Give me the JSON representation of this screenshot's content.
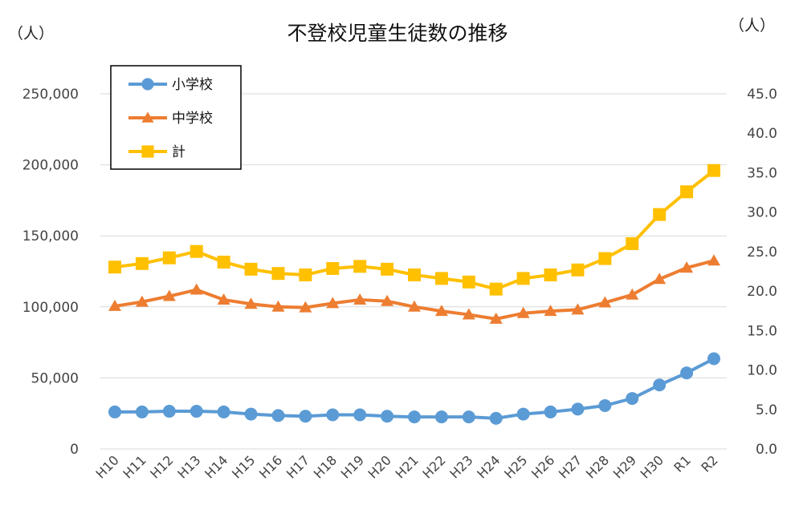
{
  "chart_data": {
    "type": "line",
    "title": "不登校児童生徒数の推移",
    "left_unit": "（人）",
    "right_unit": "（人）",
    "categories": [
      "H10",
      "H11",
      "H12",
      "H13",
      "H14",
      "H15",
      "H16",
      "H17",
      "H18",
      "H19",
      "H20",
      "H21",
      "H22",
      "H23",
      "H24",
      "H25",
      "H26",
      "H27",
      "H28",
      "H29",
      "H30",
      "R1",
      "R2"
    ],
    "series": [
      {
        "name": "小学校",
        "color": "#5b9bd5",
        "marker": "circle",
        "values": [
          26000,
          26000,
          26500,
          26500,
          26000,
          24500,
          23500,
          23000,
          24000,
          24000,
          23000,
          22500,
          22500,
          22500,
          21500,
          24500,
          26000,
          28000,
          30500,
          35500,
          45000,
          53500,
          63500
        ]
      },
      {
        "name": "中学校",
        "color": "#ed7d31",
        "marker": "triangle",
        "values": [
          100500,
          103500,
          107500,
          112000,
          105000,
          102000,
          100000,
          99500,
          102500,
          105000,
          104000,
          100000,
          97000,
          94500,
          91500,
          95500,
          97000,
          98000,
          103000,
          108500,
          119500,
          127500,
          132500
        ]
      },
      {
        "name": "計",
        "color": "#ffc000",
        "marker": "square",
        "values": [
          128000,
          130500,
          134500,
          139000,
          131500,
          126500,
          123500,
          122500,
          127000,
          128500,
          126500,
          122500,
          120000,
          117500,
          112500,
          120000,
          122500,
          126000,
          134000,
          144500,
          165000,
          181000,
          196000
        ]
      }
    ],
    "y_left": {
      "min": 0,
      "max": 250000,
      "ticks": [
        "0",
        "50,000",
        "100,000",
        "150,000",
        "200,000",
        "250,000"
      ]
    },
    "y_right": {
      "min": 0,
      "max": 45,
      "ticks": [
        "0.0",
        "5.0",
        "10.0",
        "15.0",
        "20.0",
        "25.0",
        "30.0",
        "35.0",
        "40.0",
        "45.0"
      ]
    },
    "grid": true,
    "legend_position": "top-left"
  }
}
